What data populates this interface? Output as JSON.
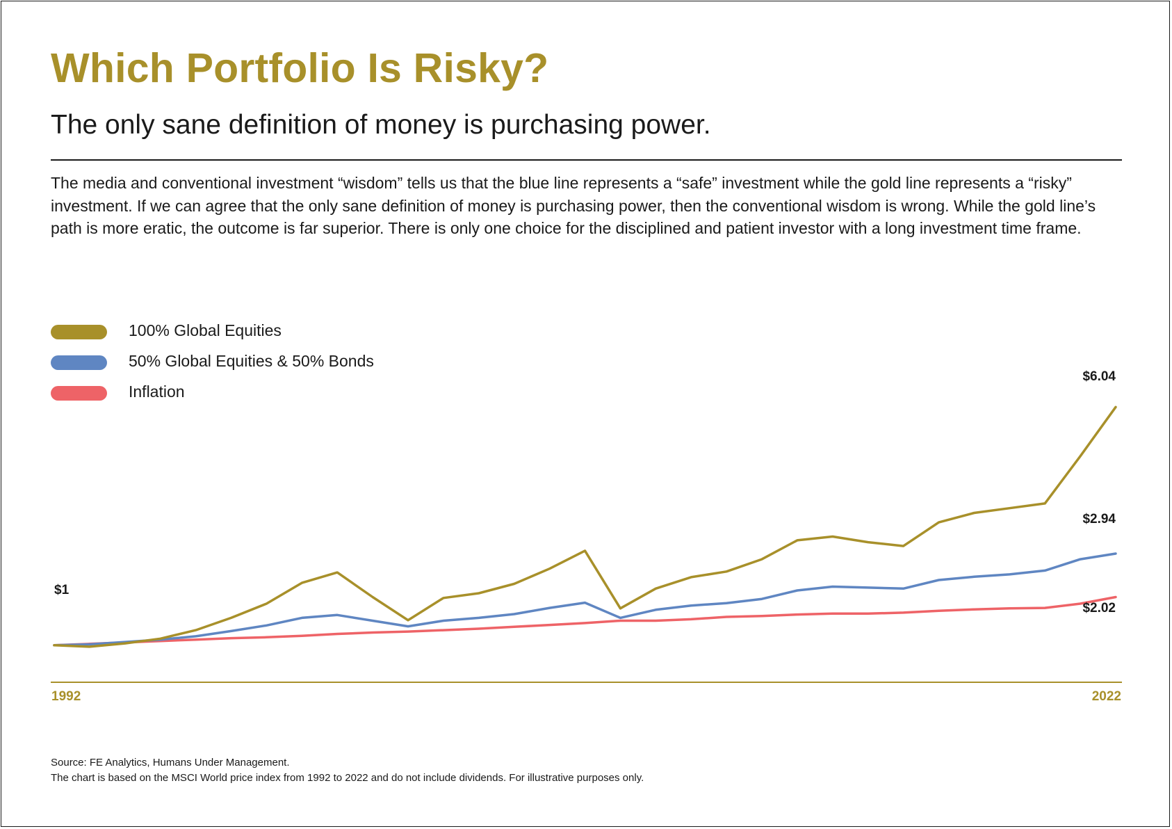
{
  "title": "Which Portfolio Is Risky?",
  "subtitle": "The only sane definition of money is purchasing power.",
  "intro": "The media and conventional investment “wisdom” tells us that the blue line represents a “safe” investment while the gold line represents a “risky” investment. If we can agree that the only sane definition of money is purchasing power, then the conventional wisdom is wrong. While the gold line’s path is more eratic, the outcome is far superior. There is only one choice for the disciplined and patient investor with a long investment time frame.",
  "footer": {
    "source": "Source: FE Analytics, Humans Under Management.",
    "note": "The chart is based on the MSCI World price index from 1992 to 2022 and do not include dividends. For illustrative purposes only."
  },
  "chart_data": {
    "type": "line",
    "x": [
      1992,
      1993,
      1994,
      1995,
      1996,
      1997,
      1998,
      1999,
      2000,
      2001,
      2002,
      2003,
      2004,
      2005,
      2006,
      2007,
      2008,
      2009,
      2010,
      2011,
      2012,
      2013,
      2014,
      2015,
      2016,
      2017,
      2018,
      2019,
      2020,
      2021,
      2022
    ],
    "xlim": [
      1992,
      2022
    ],
    "ylim": [
      0.6,
      7.0
    ],
    "x_tick_labels": [
      "1992",
      "2022"
    ],
    "start_label": "$1",
    "series": [
      {
        "name": "100% Global Equities",
        "color": "#a8902a",
        "end_label": "$6.04",
        "values": [
          1.0,
          0.97,
          1.04,
          1.14,
          1.32,
          1.58,
          1.88,
          2.32,
          2.54,
          2.02,
          1.53,
          2.0,
          2.1,
          2.3,
          2.62,
          3.0,
          1.78,
          2.2,
          2.44,
          2.56,
          2.82,
          3.22,
          3.3,
          3.18,
          3.1,
          3.6,
          3.8,
          3.9,
          4.0,
          5.0,
          6.04
        ]
      },
      {
        "name": "50% Global Equities & 50% Bonds",
        "color": "#5f86c2",
        "end_label": "$2.94",
        "values": [
          1.0,
          1.02,
          1.07,
          1.12,
          1.19,
          1.3,
          1.42,
          1.58,
          1.64,
          1.52,
          1.4,
          1.52,
          1.58,
          1.66,
          1.79,
          1.9,
          1.58,
          1.75,
          1.84,
          1.89,
          1.98,
          2.16,
          2.24,
          2.22,
          2.2,
          2.38,
          2.45,
          2.5,
          2.58,
          2.82,
          2.94
        ]
      },
      {
        "name": "Inflation",
        "color": "#ee6367",
        "end_label": "$2.02",
        "values": [
          1.0,
          1.03,
          1.06,
          1.09,
          1.12,
          1.15,
          1.17,
          1.2,
          1.24,
          1.27,
          1.29,
          1.32,
          1.35,
          1.39,
          1.43,
          1.47,
          1.52,
          1.52,
          1.55,
          1.6,
          1.62,
          1.65,
          1.67,
          1.67,
          1.69,
          1.73,
          1.76,
          1.78,
          1.79,
          1.88,
          2.02
        ]
      }
    ]
  }
}
